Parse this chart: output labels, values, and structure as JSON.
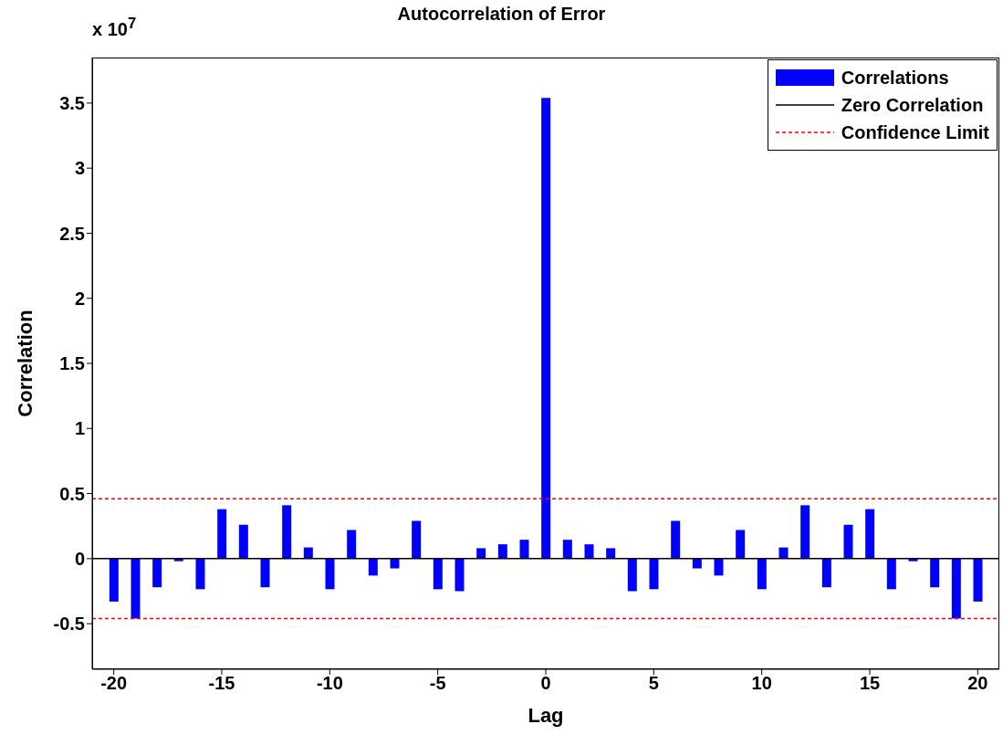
{
  "chart_data": {
    "type": "bar",
    "title": "Autocorrelation of Error",
    "xlabel": "Lag",
    "ylabel": "Correlation",
    "annotations": [
      "x 10$^{7}$"
    ],
    "x": [
      -20,
      -19,
      -18,
      -17,
      -16,
      -15,
      -14,
      -13,
      -12,
      -11,
      -10,
      -9,
      -8,
      -7,
      -6,
      -5,
      -4,
      -3,
      -2,
      -1,
      0,
      1,
      2,
      3,
      4,
      5,
      6,
      7,
      8,
      9,
      10,
      11,
      12,
      13,
      14,
      15,
      16,
      17,
      18,
      19,
      20
    ],
    "series": [
      {
        "name": "Correlations",
        "color": "#0000ff",
        "values": [
          -0.33,
          -0.46,
          -0.22,
          -0.02,
          -0.235,
          0.38,
          0.26,
          -0.22,
          0.41,
          0.086,
          -0.235,
          0.22,
          -0.13,
          -0.075,
          0.29,
          -0.235,
          -0.25,
          0.08,
          0.11,
          0.145,
          3.54,
          0.145,
          0.11,
          0.08,
          -0.25,
          -0.235,
          0.29,
          -0.075,
          -0.13,
          0.22,
          -0.235,
          0.086,
          0.41,
          -0.22,
          0.26,
          0.38,
          -0.235,
          -0.02,
          -0.22,
          -0.46,
          -0.33
        ]
      }
    ],
    "ref_lines": [
      {
        "axis": "y",
        "value": 0,
        "label": "Zero Correlation",
        "color": "#000000",
        "line_style": "solid"
      },
      {
        "axis": "y",
        "value": 0.46,
        "label": "Confidence Limit",
        "color": "#ff0000",
        "line_style": "dashed"
      },
      {
        "axis": "y",
        "value": -0.46,
        "label": null,
        "color": "#ff0000",
        "line_style": "dashed"
      }
    ],
    "xlim": [
      -21,
      21
    ],
    "xticks": [
      -20,
      -15,
      -10,
      -5,
      0,
      5,
      10,
      15,
      20
    ],
    "ylim": [
      -0.85,
      3.85
    ],
    "yticks": [
      -0.5,
      0,
      0.5,
      1,
      1.5,
      2,
      2.5,
      3,
      3.5
    ],
    "grid": false,
    "legend": "top right"
  }
}
